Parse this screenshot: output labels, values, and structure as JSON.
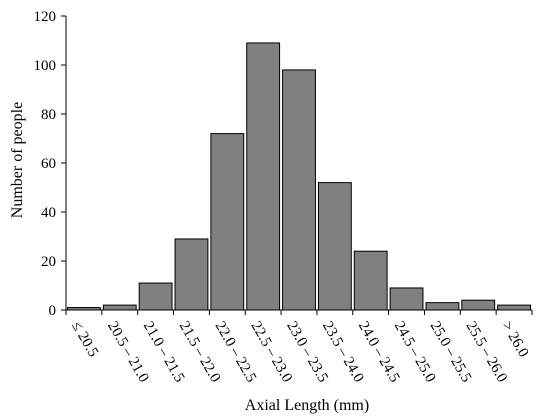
{
  "chart_data": {
    "type": "bar",
    "title": "",
    "xlabel": "Axial Length (mm)",
    "ylabel": "Number of people",
    "ylim": [
      0,
      120
    ],
    "yticks": [
      0,
      20,
      40,
      60,
      80,
      100,
      120
    ],
    "grid": false,
    "legend": "none",
    "categories": [
      "≤ 20.5",
      "20.5 – 21.0",
      "21.0 – 21.5",
      "21.5 – 22.0",
      "22.0 – 22.5",
      "22.5 – 23.0",
      "23.0 – 23.5",
      "23.5 – 24.0",
      "24.0 – 24.5",
      "24.5 – 25.0",
      "25.0 – 25.5",
      "25.5 – 26.0",
      "> 26.0"
    ],
    "values": [
      1,
      2,
      11,
      29,
      72,
      109,
      98,
      52,
      24,
      9,
      3,
      4,
      2
    ],
    "bar_color": "#808080"
  }
}
